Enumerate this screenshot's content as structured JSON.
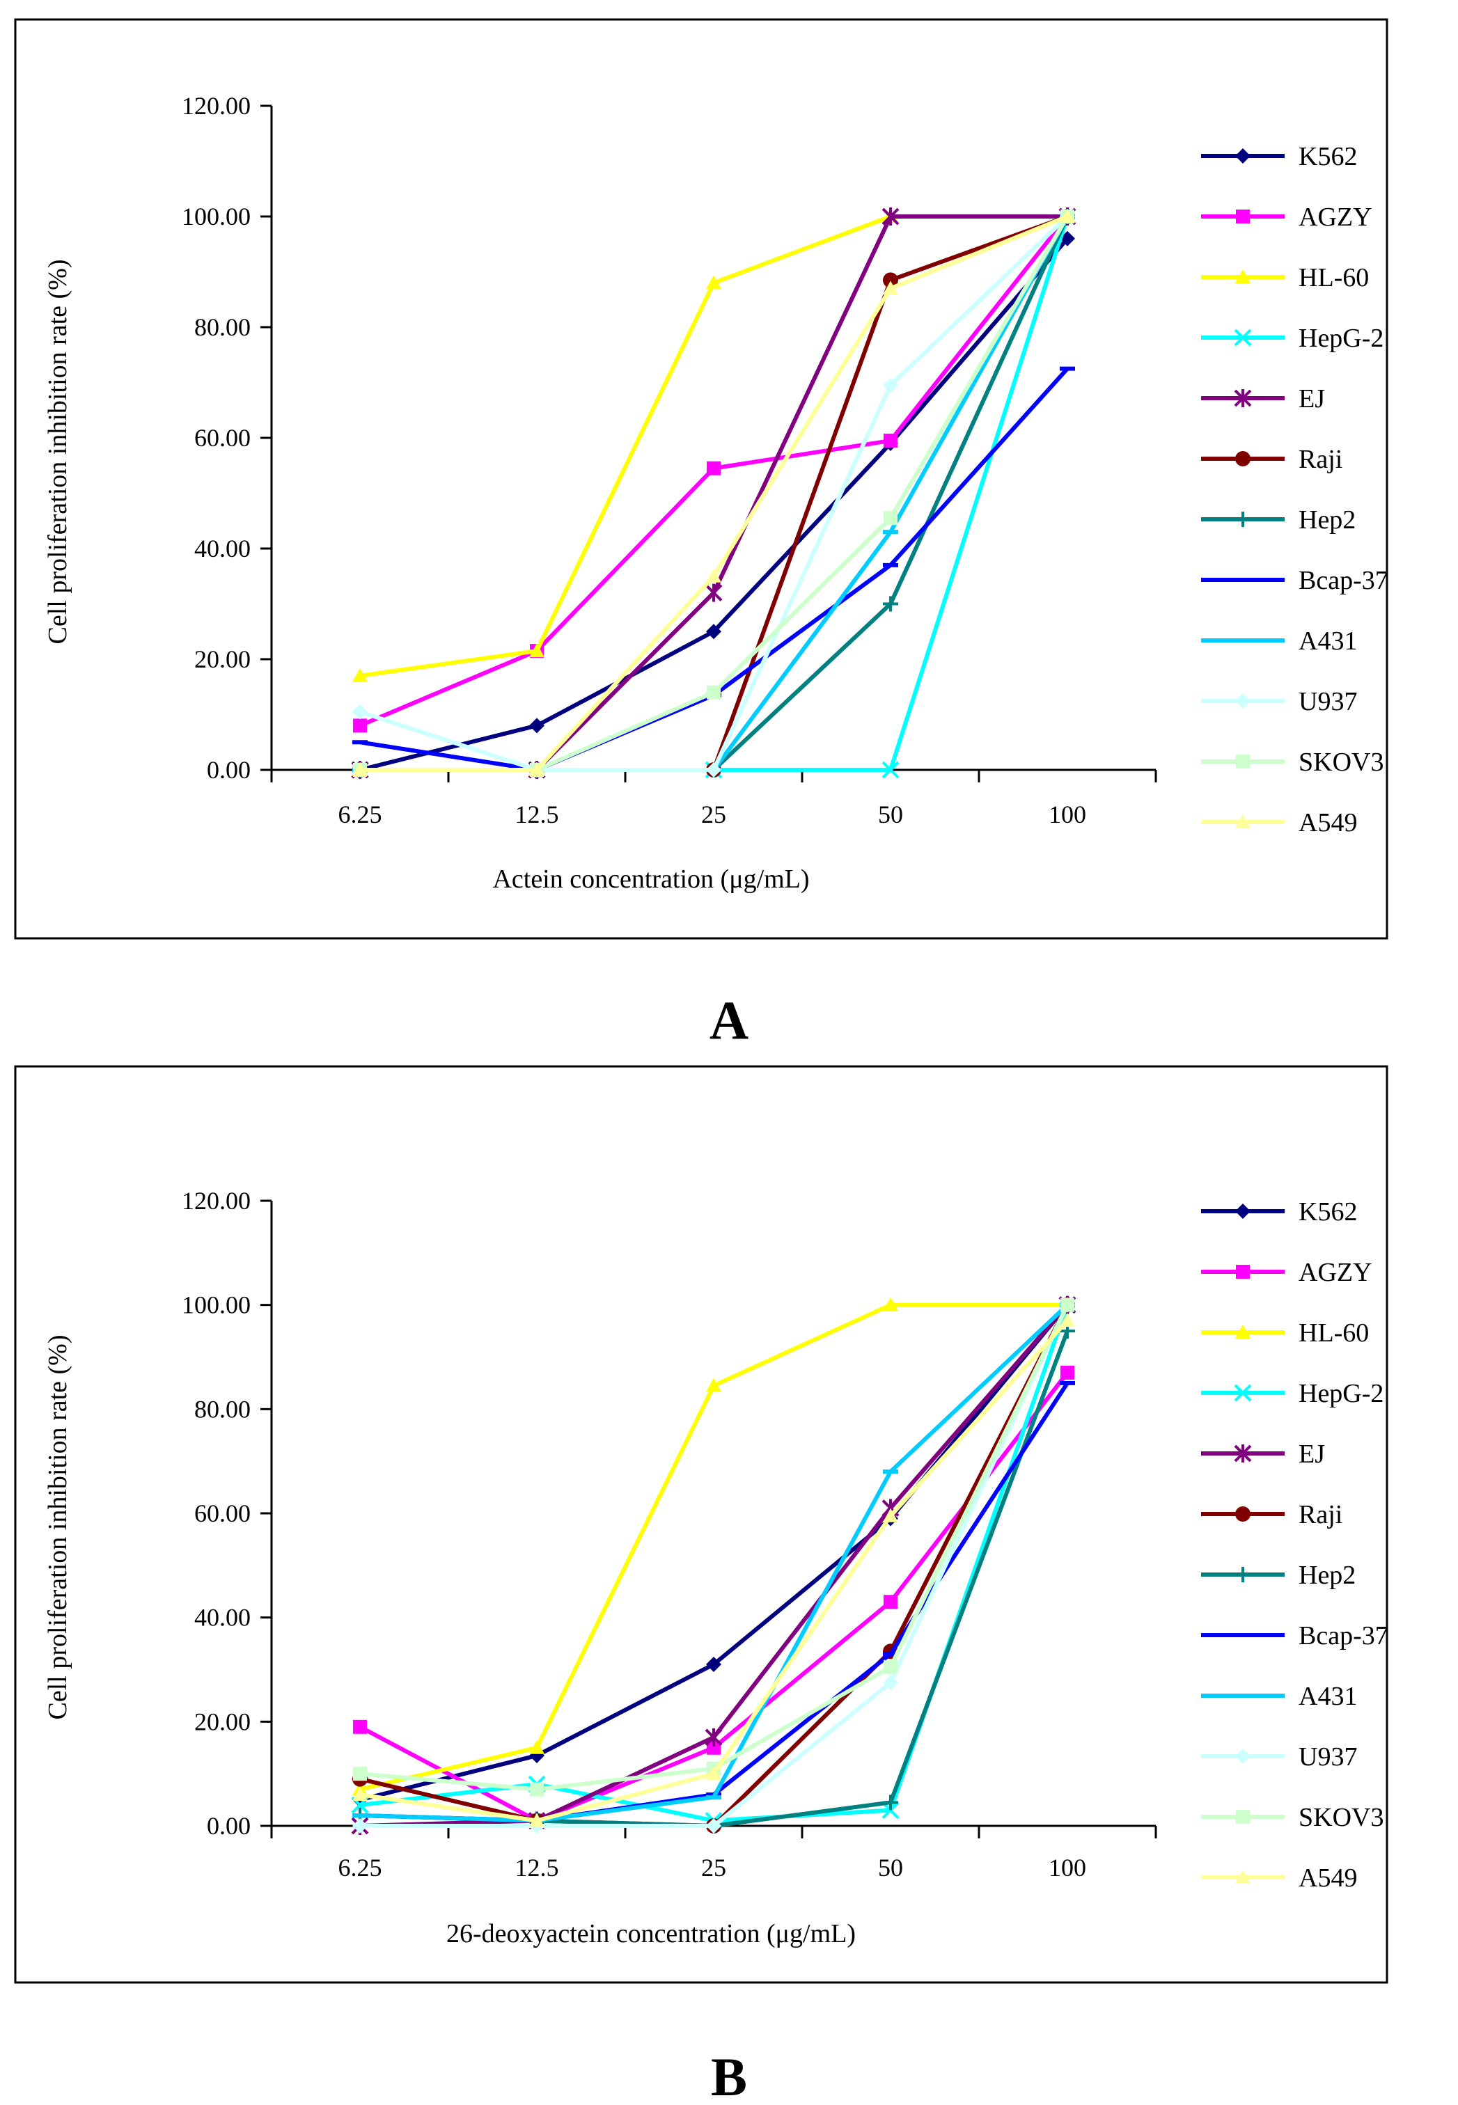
{
  "figure_labels": [
    "A",
    "B"
  ],
  "chart_data": [
    {
      "panel": "A",
      "type": "line",
      "xlabel": "Actein concentration (μg/mL)",
      "ylabel": "Cell proliferation inhibition rate (%)",
      "categories": [
        "6.25",
        "12.5",
        "25",
        "50",
        "100"
      ],
      "ylim": [
        0,
        120
      ],
      "yticks": [
        "0.00",
        "20.00",
        "40.00",
        "60.00",
        "80.00",
        "100.00",
        "120.00"
      ],
      "grid": false,
      "legend_position": "right",
      "series": [
        {
          "name": "K562",
          "color": "#00007f",
          "marker": "diamond",
          "values": [
            0,
            8,
            25,
            59,
            96
          ]
        },
        {
          "name": "AGZY",
          "color": "#ff00ff",
          "marker": "square",
          "values": [
            8,
            21.5,
            54.5,
            59.5,
            100
          ]
        },
        {
          "name": "HL-60",
          "color": "#ffff00",
          "marker": "triangle",
          "values": [
            17,
            21.5,
            88,
            100,
            100
          ]
        },
        {
          "name": "HepG-2",
          "color": "#00ffff",
          "marker": "x",
          "values": [
            0,
            0,
            0,
            0,
            100
          ]
        },
        {
          "name": "EJ",
          "color": "#800080",
          "marker": "star",
          "values": [
            0,
            0,
            32,
            100,
            100
          ]
        },
        {
          "name": "Raji",
          "color": "#800000",
          "marker": "circle",
          "values": [
            0,
            0,
            0,
            88.5,
            100
          ]
        },
        {
          "name": "Hep2",
          "color": "#008080",
          "marker": "plus",
          "values": [
            0,
            0,
            0,
            30,
            100
          ]
        },
        {
          "name": "Bcap-37",
          "color": "#0000ff",
          "marker": "dash",
          "values": [
            5,
            0,
            13.5,
            37,
            72.5
          ]
        },
        {
          "name": "A431",
          "color": "#00ccff",
          "marker": "dash",
          "values": [
            0,
            0,
            0,
            43,
            100
          ]
        },
        {
          "name": "U937",
          "color": "#ccffff",
          "marker": "diamond",
          "values": [
            10.5,
            0,
            0,
            69.5,
            100
          ]
        },
        {
          "name": "SKOV3",
          "color": "#ccffcc",
          "marker": "square",
          "values": [
            0,
            0,
            14,
            45.5,
            100
          ]
        },
        {
          "name": "A549",
          "color": "#ffff99",
          "marker": "triangle",
          "values": [
            0,
            0,
            35,
            87,
            100
          ]
        }
      ]
    },
    {
      "panel": "B",
      "type": "line",
      "xlabel": "26-deoxyactein  concentration (μg/mL)",
      "ylabel": "Cell  proliferation  inhibition  rate (%)",
      "categories": [
        "6.25",
        "12.5",
        "25",
        "50",
        "100"
      ],
      "ylim": [
        0,
        120
      ],
      "yticks": [
        "0.00",
        "20.00",
        "40.00",
        "60.00",
        "80.00",
        "100.00",
        "120.00"
      ],
      "grid": false,
      "legend_position": "right",
      "series": [
        {
          "name": "K562",
          "color": "#00007f",
          "marker": "diamond",
          "values": [
            5,
            13.5,
            31,
            59,
            100
          ]
        },
        {
          "name": "AGZY",
          "color": "#ff00ff",
          "marker": "square",
          "values": [
            19,
            1,
            15,
            43,
            87
          ]
        },
        {
          "name": "HL-60",
          "color": "#ffff00",
          "marker": "triangle",
          "values": [
            7,
            15,
            84.5,
            100,
            100
          ]
        },
        {
          "name": "HepG-2",
          "color": "#00ffff",
          "marker": "x",
          "values": [
            4,
            8,
            1,
            3,
            100
          ]
        },
        {
          "name": "EJ",
          "color": "#800080",
          "marker": "star",
          "values": [
            0,
            1,
            17,
            61,
            100
          ]
        },
        {
          "name": "Raji",
          "color": "#800000",
          "marker": "circle",
          "values": [
            9,
            1,
            0,
            33.5,
            100
          ]
        },
        {
          "name": "Hep2",
          "color": "#008080",
          "marker": "plus",
          "values": [
            2,
            1,
            0,
            4.5,
            95
          ]
        },
        {
          "name": "Bcap-37",
          "color": "#0000ff",
          "marker": "dash",
          "values": [
            2,
            1,
            6,
            33,
            85
          ]
        },
        {
          "name": "A431",
          "color": "#00ccff",
          "marker": "dash",
          "values": [
            2,
            1,
            5.5,
            68,
            100
          ]
        },
        {
          "name": "U937",
          "color": "#ccffff",
          "marker": "diamond",
          "values": [
            0,
            0,
            0,
            27.5,
            100
          ]
        },
        {
          "name": "SKOV3",
          "color": "#ccffcc",
          "marker": "square",
          "values": [
            10,
            7,
            11,
            30.5,
            100
          ]
        },
        {
          "name": "A549",
          "color": "#ffff99",
          "marker": "triangle",
          "values": [
            6,
            1,
            10,
            59.5,
            97
          ]
        }
      ]
    }
  ]
}
